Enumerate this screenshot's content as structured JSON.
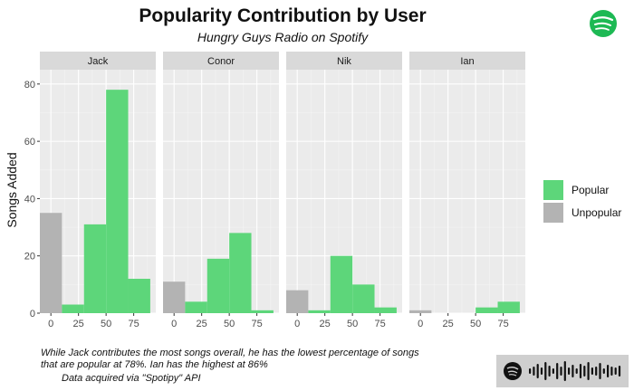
{
  "chart_data": {
    "type": "bar",
    "title": "Popularity Contribution by User",
    "subtitle": "Hungry Guys Radio on Spotify",
    "ylabel": "Songs Added",
    "xlabel": "",
    "xlim": [
      -10,
      95
    ],
    "ylim": [
      0,
      85
    ],
    "x_ticks": [
      0,
      25,
      50,
      75
    ],
    "y_ticks": [
      0,
      20,
      40,
      60,
      80
    ],
    "bin_width": 20,
    "grid": true,
    "legend_position": "right",
    "legend": [
      {
        "label": "Popular",
        "color": "#5dd67a"
      },
      {
        "label": "Unpopular",
        "color": "#b3b3b3"
      }
    ],
    "panels": [
      {
        "name": "Jack",
        "unpopular": [
          {
            "x": 0,
            "count": 35
          }
        ],
        "popular": [
          {
            "x": 20,
            "count": 3
          },
          {
            "x": 40,
            "count": 31
          },
          {
            "x": 60,
            "count": 78
          },
          {
            "x": 80,
            "count": 12
          }
        ]
      },
      {
        "name": "Conor",
        "unpopular": [
          {
            "x": 0,
            "count": 11
          }
        ],
        "popular": [
          {
            "x": 20,
            "count": 4
          },
          {
            "x": 40,
            "count": 19
          },
          {
            "x": 60,
            "count": 28
          },
          {
            "x": 80,
            "count": 1
          }
        ]
      },
      {
        "name": "Nik",
        "unpopular": [
          {
            "x": 0,
            "count": 8
          }
        ],
        "popular": [
          {
            "x": 20,
            "count": 1
          },
          {
            "x": 40,
            "count": 20
          },
          {
            "x": 60,
            "count": 10
          },
          {
            "x": 80,
            "count": 2
          }
        ]
      },
      {
        "name": "Ian",
        "unpopular": [
          {
            "x": 0,
            "count": 1
          }
        ],
        "popular": [
          {
            "x": 60,
            "count": 2
          },
          {
            "x": 80,
            "count": 4
          }
        ]
      }
    ],
    "caption_lines": [
      "While Jack contributes the most songs overall, he has the lowest percentage of songs",
      "that are popular at 78%. Ian has the highest at 86%",
      "Data acquired via \"Spotipy\" API"
    ]
  },
  "colors": {
    "popular": "#5dd67a",
    "unpopular": "#b3b3b3",
    "panel_bg": "#ebebeb",
    "strip_bg": "#d9d9d9",
    "grid_major": "#ffffff",
    "spotify_green": "#1db954",
    "code_bg": "#cfcfcf"
  },
  "icons": {
    "logo": "spotify-logo-icon",
    "code": "spotify-code-icon"
  }
}
